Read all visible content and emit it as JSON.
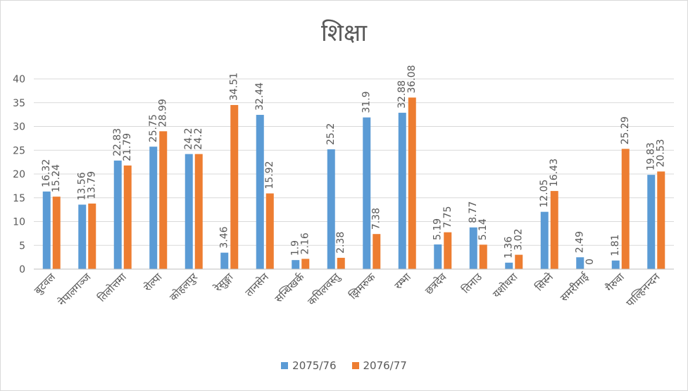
{
  "chart_data": {
    "type": "bar",
    "title": "शिक्षा",
    "ylim": [
      0,
      40
    ],
    "yticks": [
      0,
      5,
      10,
      15,
      20,
      25,
      30,
      35,
      40
    ],
    "grid": true,
    "legend_position": "bottom",
    "categories": [
      "बुटवल",
      "नेपालगञ्ज",
      "तिलोत्तमा",
      "रोल्पा",
      "कोहलपुर",
      "रेसुङ्गा",
      "तानसेन",
      "सन्धिखर्क",
      "कपिलवस्तु",
      "झिमरुक",
      "रम्भा",
      "छत्रदेव",
      "तिनाउ",
      "यशोधरा",
      "सिस्ने",
      "समरीमाई",
      "गैरुवा",
      "पाल्हिनन्दन"
    ],
    "series": [
      {
        "name": "2075/76",
        "color": "#5b9bd5",
        "values": [
          16.32,
          13.56,
          22.83,
          25.75,
          24.2,
          3.46,
          32.44,
          1.9,
          25.2,
          31.9,
          32.88,
          5.19,
          8.77,
          1.36,
          12.05,
          2.49,
          1.81,
          19.83
        ]
      },
      {
        "name": "2076/77",
        "color": "#ed7d31",
        "values": [
          15.24,
          13.79,
          21.79,
          28.99,
          24.2,
          34.51,
          15.92,
          2.16,
          2.38,
          7.38,
          36.08,
          7.75,
          5.14,
          3.02,
          16.43,
          0,
          25.29,
          20.53
        ]
      }
    ]
  },
  "colors": {
    "gridline": "#d9d9d9",
    "text": "#595959"
  }
}
